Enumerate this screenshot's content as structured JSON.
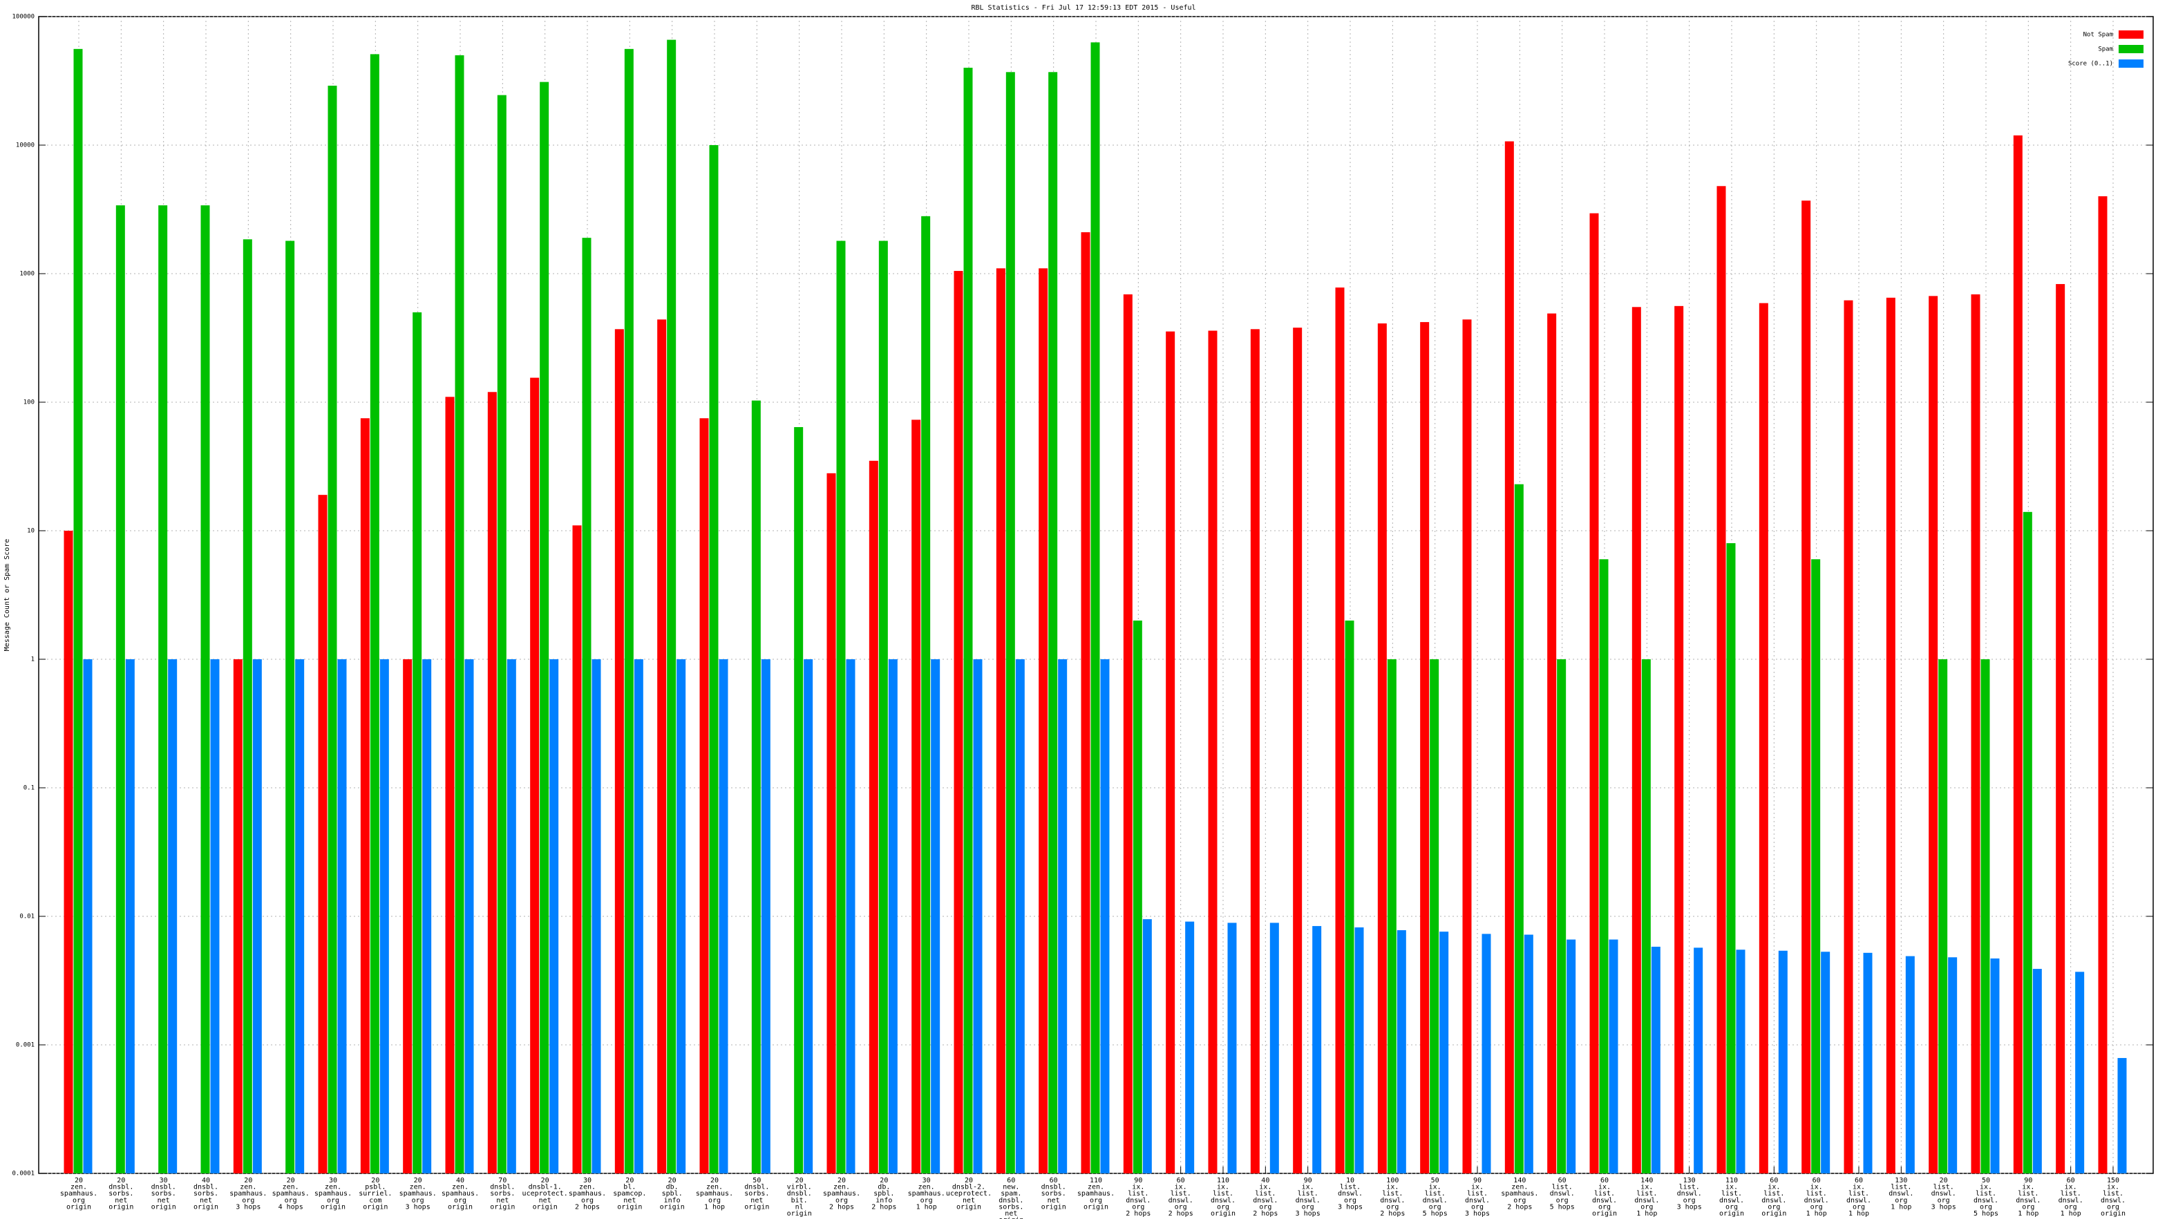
{
  "chart_data": {
    "type": "bar",
    "title": "RBL Statistics - Fri Jul 17 12:59:13 EDT 2015 - Useful",
    "y_label": "Message Count or Spam Score",
    "log_scale": true,
    "grid": true,
    "legend": "top-right",
    "ylim": [
      0.0001,
      100000
    ],
    "yticks": [
      0.0001,
      0.001,
      0.01,
      0.1,
      1,
      10,
      100,
      1000,
      10000,
      100000
    ],
    "categories": [
      [
        "20",
        "zen.",
        "spamhaus.",
        "org",
        "origin"
      ],
      [
        "20",
        "dnsbl.",
        "sorbs.",
        "net",
        "origin"
      ],
      [
        "30",
        "dnsbl.",
        "sorbs.",
        "net",
        "origin"
      ],
      [
        "40",
        "dnsbl.",
        "sorbs.",
        "net",
        "origin"
      ],
      [
        "20",
        "zen.",
        "spamhaus.",
        "org",
        "3 hops"
      ],
      [
        "20",
        "zen.",
        "spamhaus.",
        "org",
        "4 hops"
      ],
      [
        "30",
        "zen.",
        "spamhaus.",
        "org",
        "origin"
      ],
      [
        "20",
        "psbl.",
        "surriel.",
        "com",
        "origin"
      ],
      [
        "20",
        "zen.",
        "spamhaus.",
        "org",
        "3 hops"
      ],
      [
        "40",
        "zen.",
        "spamhaus.",
        "org",
        "origin"
      ],
      [
        "70",
        "dnsbl.",
        "sorbs.",
        "net",
        "origin"
      ],
      [
        "20",
        "dnsbl-1.",
        "uceprotect.",
        "net",
        "origin"
      ],
      [
        "30",
        "zen.",
        "spamhaus.",
        "org",
        "2 hops"
      ],
      [
        "20",
        "bl.",
        "spamcop.",
        "net",
        "origin"
      ],
      [
        "20",
        "db.",
        "spbl.",
        "info",
        "origin"
      ],
      [
        "20",
        "zen.",
        "spamhaus.",
        "org",
        "1 hop"
      ],
      [
        "50",
        "dnsbl.",
        "sorbs.",
        "net",
        "origin"
      ],
      [
        "20",
        "virbl.",
        "dnsbl.",
        "bit.",
        "nl",
        "origin"
      ],
      [
        "20",
        "zen.",
        "spamhaus.",
        "org",
        "2 hops"
      ],
      [
        "20",
        "db.",
        "spbl.",
        "info",
        "2 hops"
      ],
      [
        "30",
        "zen.",
        "spamhaus.",
        "org",
        "1 hop"
      ],
      [
        "20",
        "dnsbl-2.",
        "uceprotect.",
        "net",
        "origin"
      ],
      [
        "60",
        "new.",
        "spam.",
        "dnsbl.",
        "sorbs.",
        "net",
        "origin"
      ],
      [
        "60",
        "dnsbl.",
        "sorbs.",
        "net",
        "origin"
      ],
      [
        "110",
        "zen.",
        "spamhaus.",
        "org",
        "origin"
      ],
      [
        "90",
        "ix.",
        "list.",
        "dnswl.",
        "org",
        "2 hops"
      ],
      [
        "60",
        "ix.",
        "list.",
        "dnswl.",
        "org",
        "2 hops"
      ],
      [
        "110",
        "ix.",
        "list.",
        "dnswl.",
        "org",
        "origin"
      ],
      [
        "40",
        "ix.",
        "list.",
        "dnswl.",
        "org",
        "2 hops"
      ],
      [
        "90",
        "ix.",
        "list.",
        "dnswl.",
        "org",
        "3 hops"
      ],
      [
        "10",
        "list.",
        "dnswl.",
        "org",
        "3 hops"
      ],
      [
        "100",
        "ix.",
        "list.",
        "dnswl.",
        "org",
        "2 hops"
      ],
      [
        "50",
        "ix.",
        "list.",
        "dnswl.",
        "org",
        "5 hops"
      ],
      [
        "90",
        "ix.",
        "list.",
        "dnswl.",
        "org",
        "3 hops"
      ],
      [
        "140",
        "zen.",
        "spamhaus.",
        "org",
        "2 hops"
      ],
      [
        "60",
        "list.",
        "dnswl.",
        "org",
        "5 hops"
      ],
      [
        "60",
        "ix.",
        "list.",
        "dnswl.",
        "org",
        "origin"
      ],
      [
        "140",
        "ix.",
        "list.",
        "dnswl.",
        "org",
        "1 hop"
      ],
      [
        "130",
        "list.",
        "dnswl.",
        "org",
        "3 hops"
      ],
      [
        "110",
        "ix.",
        "list.",
        "dnswl.",
        "org",
        "origin"
      ],
      [
        "60",
        "ix.",
        "list.",
        "dnswl.",
        "org",
        "origin"
      ],
      [
        "60",
        "ix.",
        "list.",
        "dnswl.",
        "org",
        "1 hop"
      ],
      [
        "60",
        "ix.",
        "list.",
        "dnswl.",
        "org",
        "1 hop"
      ],
      [
        "130",
        "list.",
        "dnswl.",
        "org",
        "1 hop"
      ],
      [
        "20",
        "list.",
        "dnswl.",
        "org",
        "3 hops"
      ],
      [
        "50",
        "ix.",
        "list.",
        "dnswl.",
        "org",
        "5 hops"
      ],
      [
        "90",
        "ix.",
        "list.",
        "dnswl.",
        "org",
        "1 hop"
      ],
      [
        "60",
        "ix.",
        "list.",
        "dnswl.",
        "org",
        "1 hop"
      ],
      [
        "150",
        "ix.",
        "list.",
        "dnswl.",
        "org",
        "origin"
      ]
    ],
    "series": [
      {
        "name": "Not Spam",
        "color": "#ff0000",
        "values": [
          10,
          null,
          null,
          null,
          1,
          null,
          19,
          75,
          1,
          110,
          120,
          155,
          11,
          370,
          440,
          75,
          null,
          null,
          28,
          35,
          73,
          1050,
          1100,
          1100,
          2100,
          690,
          355,
          360,
          370,
          380,
          780,
          410,
          420,
          440,
          10700,
          490,
          2950,
          550,
          560,
          4800,
          590,
          3700,
          620,
          650,
          670,
          690,
          11900,
          830,
          4000
        ]
      },
      {
        "name": "Spam",
        "color": "#00c000",
        "values": [
          56000,
          3400,
          3400,
          3400,
          1850,
          1800,
          29000,
          51000,
          500,
          50000,
          24500,
          31000,
          1900,
          56000,
          66000,
          10000,
          103,
          64,
          1800,
          1800,
          2800,
          40000,
          37000,
          37000,
          63000,
          2,
          null,
          null,
          null,
          null,
          2,
          1,
          1,
          null,
          23,
          1,
          6,
          1,
          null,
          8,
          null,
          6,
          null,
          null,
          1,
          1,
          14,
          null,
          null
        ]
      },
      {
        "name": "Score (0..1)",
        "color": "#0080ff",
        "values": [
          1,
          1,
          1,
          1,
          1,
          1,
          1,
          1,
          1,
          1,
          1,
          1,
          1,
          1,
          1,
          1,
          1,
          1,
          1,
          1,
          1,
          1,
          1,
          1,
          1,
          0.0095,
          0.0091,
          0.0089,
          0.0089,
          0.0084,
          0.0082,
          0.0078,
          0.0076,
          0.0073,
          0.0072,
          0.0066,
          0.0066,
          0.0058,
          0.0057,
          0.0055,
          0.0054,
          0.0053,
          0.0052,
          0.0049,
          0.0048,
          0.0047,
          0.0039,
          0.0037,
          0.00079
        ]
      }
    ]
  }
}
